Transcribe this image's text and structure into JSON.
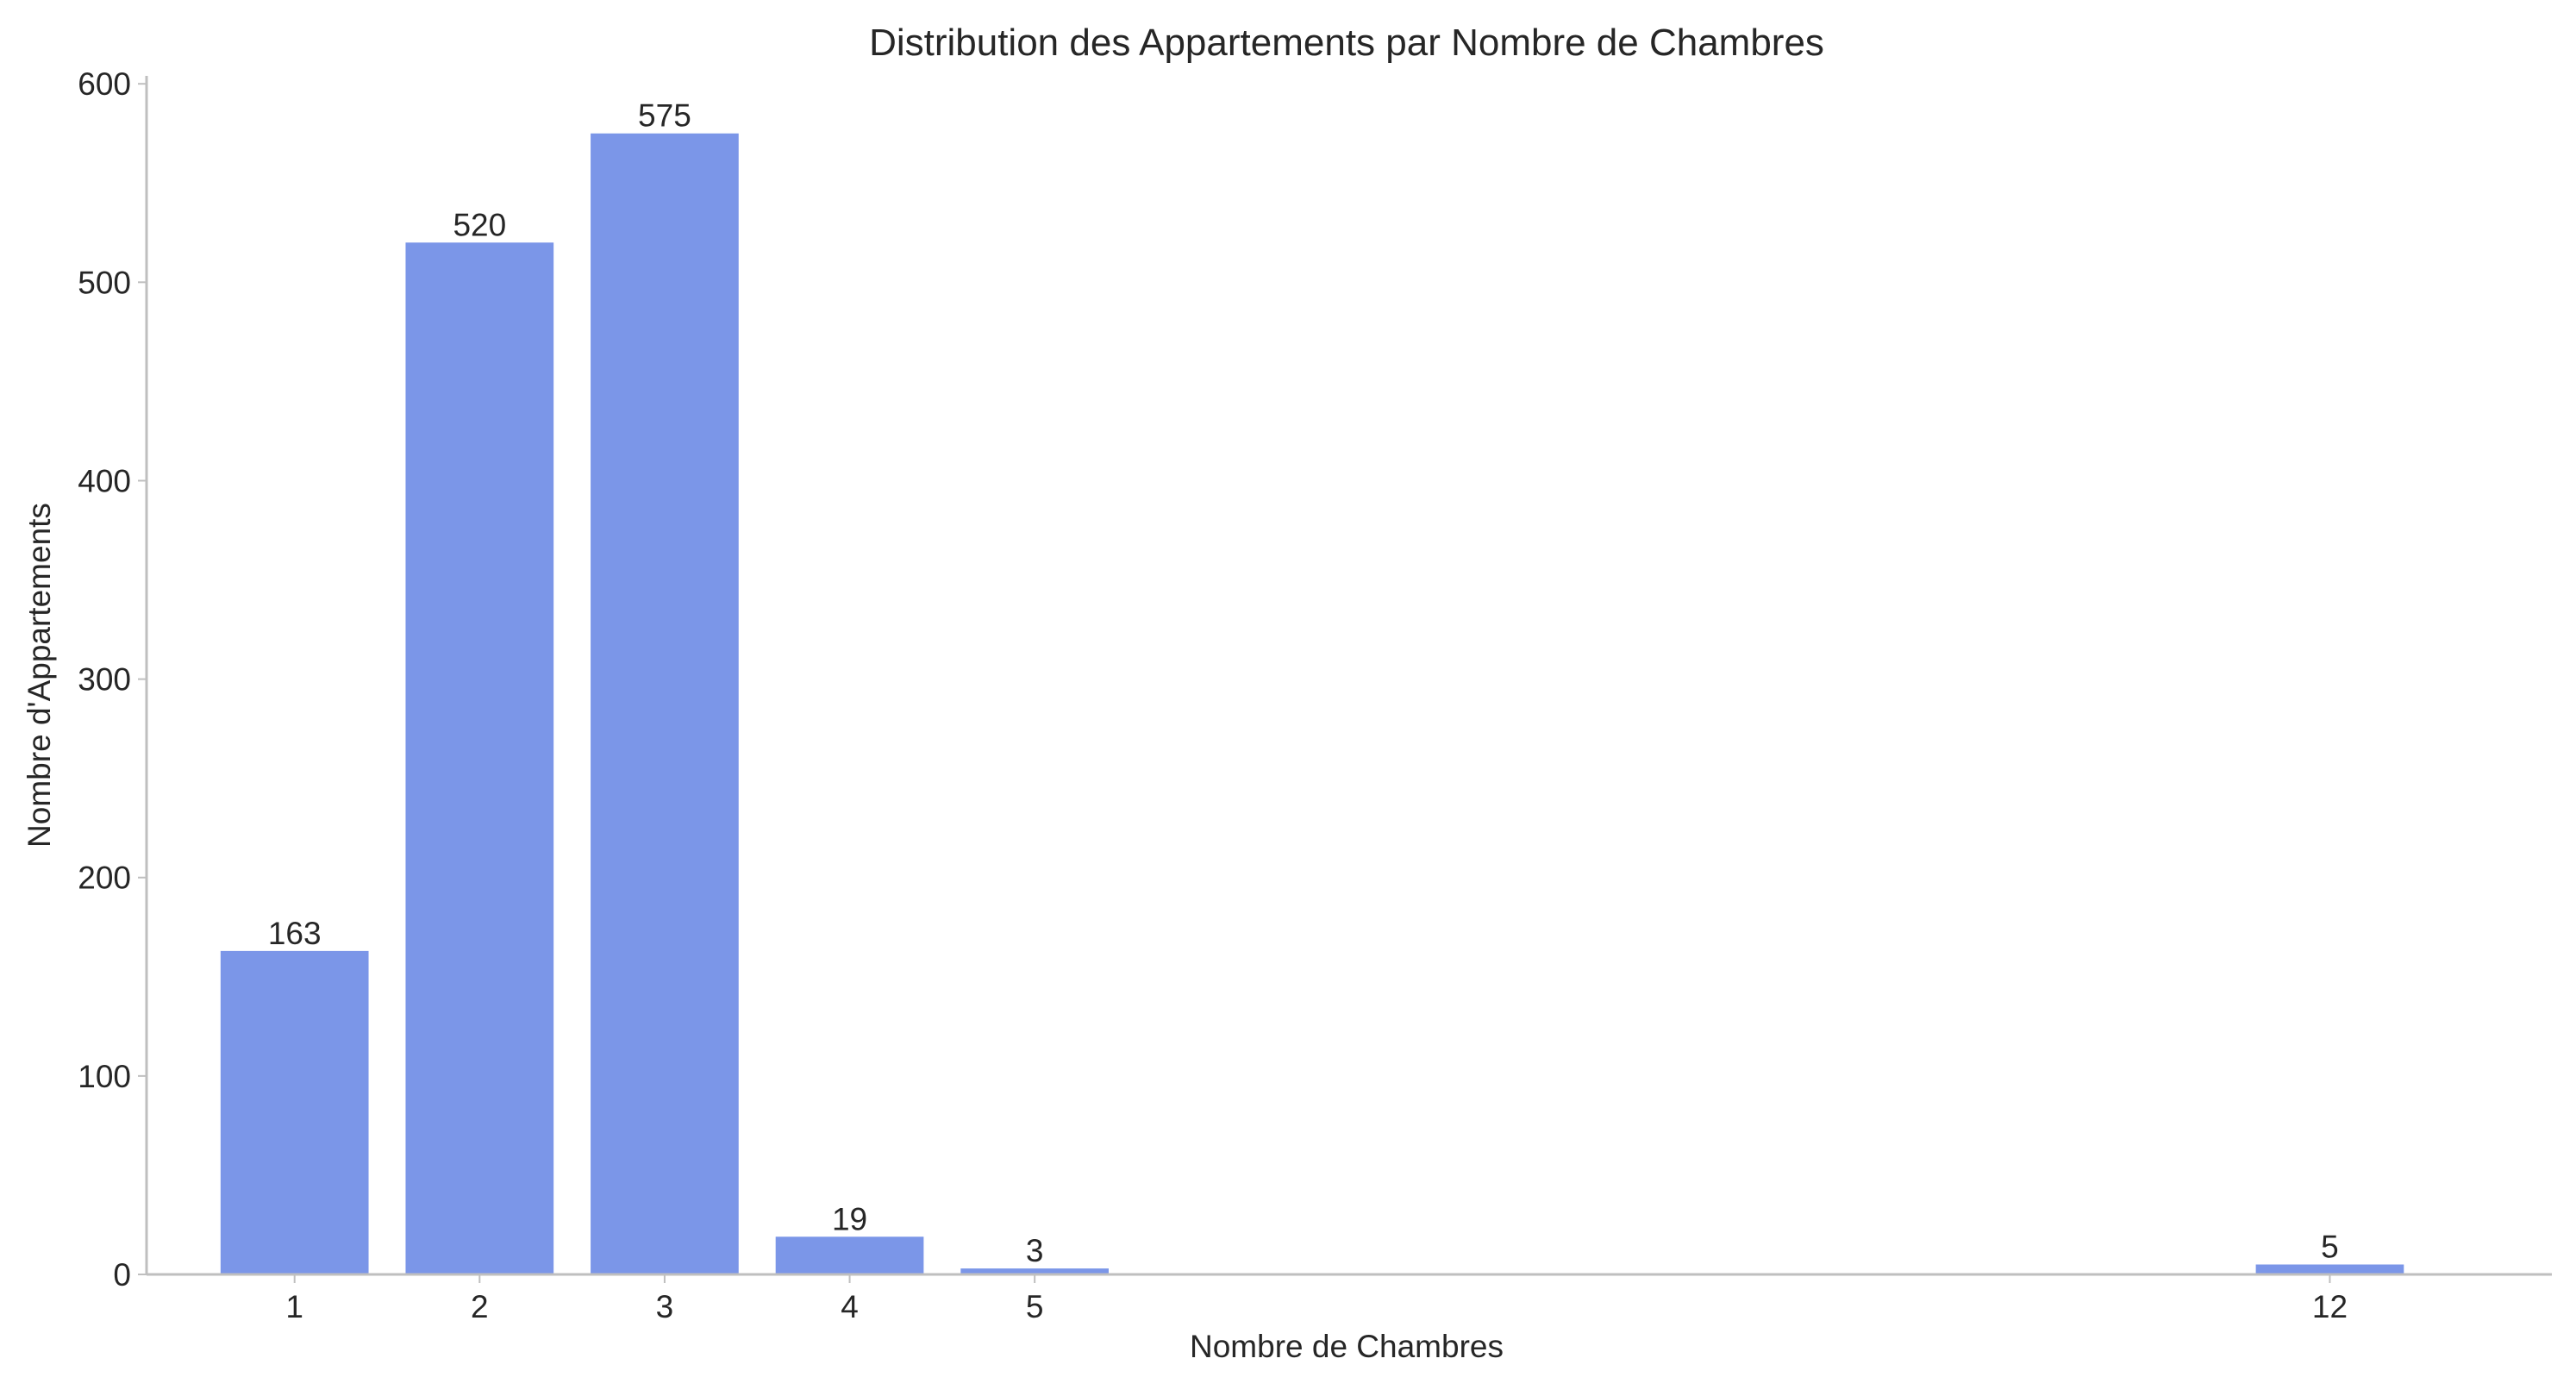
{
  "chart_data": {
    "type": "bar",
    "title": "Distribution des Appartements par Nombre de Chambres",
    "xlabel": "Nombre de Chambres",
    "ylabel": "Nombre d'Appartements",
    "x": [
      1,
      2,
      3,
      4,
      5,
      12
    ],
    "x_tick_labels": [
      "1",
      "2",
      "3",
      "4",
      "5",
      "12"
    ],
    "values": [
      163,
      520,
      575,
      19,
      3,
      5
    ],
    "data_labels": [
      "163",
      "520",
      "575",
      "19",
      "3",
      "5"
    ],
    "xlim": [
      0.2,
      13.2
    ],
    "ylim": [
      0,
      604
    ],
    "y_ticks": [
      0,
      100,
      200,
      300,
      400,
      500,
      600
    ],
    "y_tick_labels": [
      "0",
      "100",
      "200",
      "300",
      "400",
      "500",
      "600"
    ],
    "grid": false,
    "bar_color": "#7b96e8",
    "text_color": "#262626",
    "axis_color": "#bfbfbf"
  }
}
